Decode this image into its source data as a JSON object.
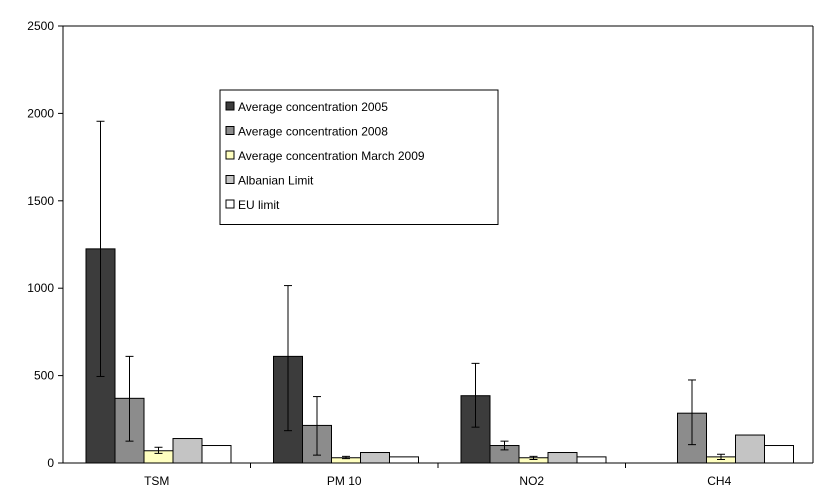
{
  "chart_data": {
    "type": "bar",
    "categories": [
      "TSM",
      "PM 10",
      "NO2",
      "CH4"
    ],
    "ylim": [
      0,
      2500
    ],
    "yticks": [
      0,
      500,
      1000,
      1500,
      2000,
      2500
    ],
    "grid": false,
    "legend_position": "upper-center",
    "series": [
      {
        "name": "Average concentration 2005",
        "color": "#3c3c3c",
        "values": [
          1225,
          610,
          385,
          null
        ],
        "err_low": [
          495,
          185,
          205,
          null
        ],
        "err_high": [
          1955,
          1015,
          570,
          null
        ]
      },
      {
        "name": "Average concentration 2008",
        "color": "#8c8c8c",
        "values": [
          370,
          215,
          100,
          285
        ],
        "err_low": [
          125,
          45,
          75,
          105
        ],
        "err_high": [
          610,
          380,
          125,
          475
        ]
      },
      {
        "name": "Average concentration March 2009",
        "color": "#ffffc0",
        "values": [
          70,
          30,
          30,
          35
        ],
        "err_low": [
          55,
          25,
          20,
          20
        ],
        "err_high": [
          90,
          38,
          38,
          50
        ]
      },
      {
        "name": "Albanian Limit",
        "color": "#c4c4c4",
        "values": [
          140,
          60,
          60,
          160
        ],
        "err_low": [
          null,
          null,
          null,
          null
        ],
        "err_high": [
          null,
          null,
          null,
          null
        ]
      },
      {
        "name": "EU limit",
        "color": "#ffffff",
        "values": [
          100,
          35,
          35,
          100
        ],
        "err_low": [
          null,
          null,
          null,
          null
        ],
        "err_high": [
          null,
          null,
          null,
          null
        ]
      }
    ]
  }
}
